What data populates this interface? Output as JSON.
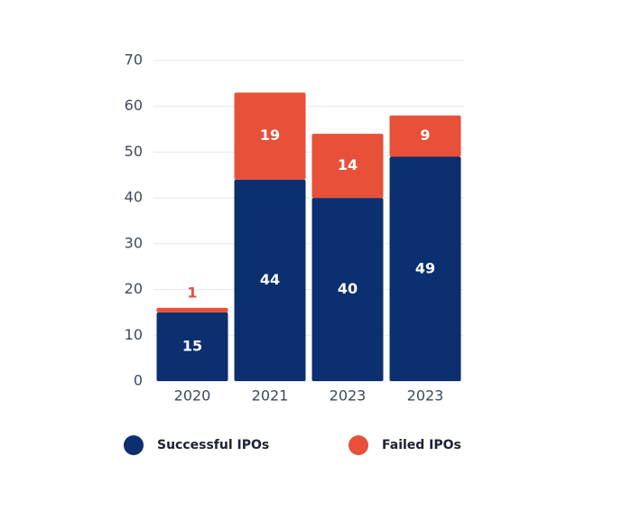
{
  "chart_data": {
    "type": "stacked_bar",
    "categories": [
      "2020",
      "2021",
      "2023",
      "2023"
    ],
    "series": [
      {
        "name": "Successful IPOs",
        "color": "#0b2f6f",
        "values": [
          15,
          44,
          40,
          49
        ]
      },
      {
        "name": "Failed IPOs",
        "color": "#e8503a",
        "values": [
          1,
          19,
          14,
          9
        ]
      }
    ],
    "ylim": [
      0,
      70
    ],
    "yticks": [
      0,
      10,
      20,
      30,
      40,
      50,
      60,
      70
    ],
    "grid": true,
    "legend": "bottom"
  }
}
